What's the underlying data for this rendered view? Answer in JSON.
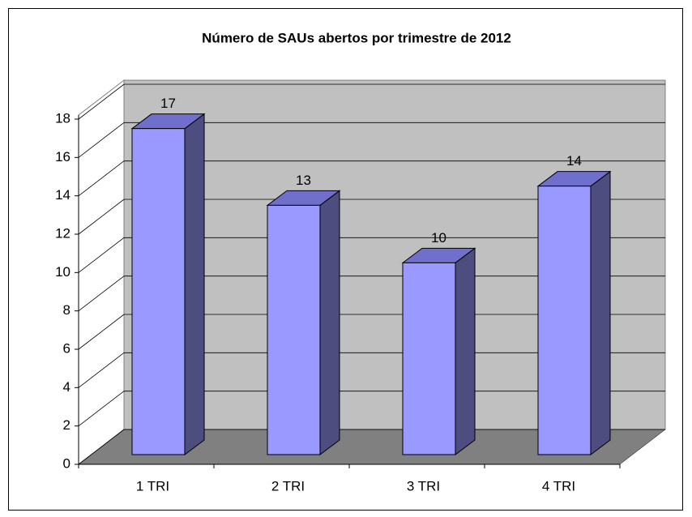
{
  "chart_data": {
    "type": "bar",
    "title": "Número de SAUs abertos por trimestre de 2012",
    "categories": [
      "1 TRI",
      "2 TRI",
      "3 TRI",
      "4 TRI"
    ],
    "values": [
      17,
      13,
      10,
      14
    ],
    "color": "#9999ff",
    "ylim": [
      0,
      18
    ],
    "yticks": [
      0,
      2,
      4,
      6,
      8,
      10,
      12,
      14,
      16,
      18
    ],
    "grid": true
  }
}
